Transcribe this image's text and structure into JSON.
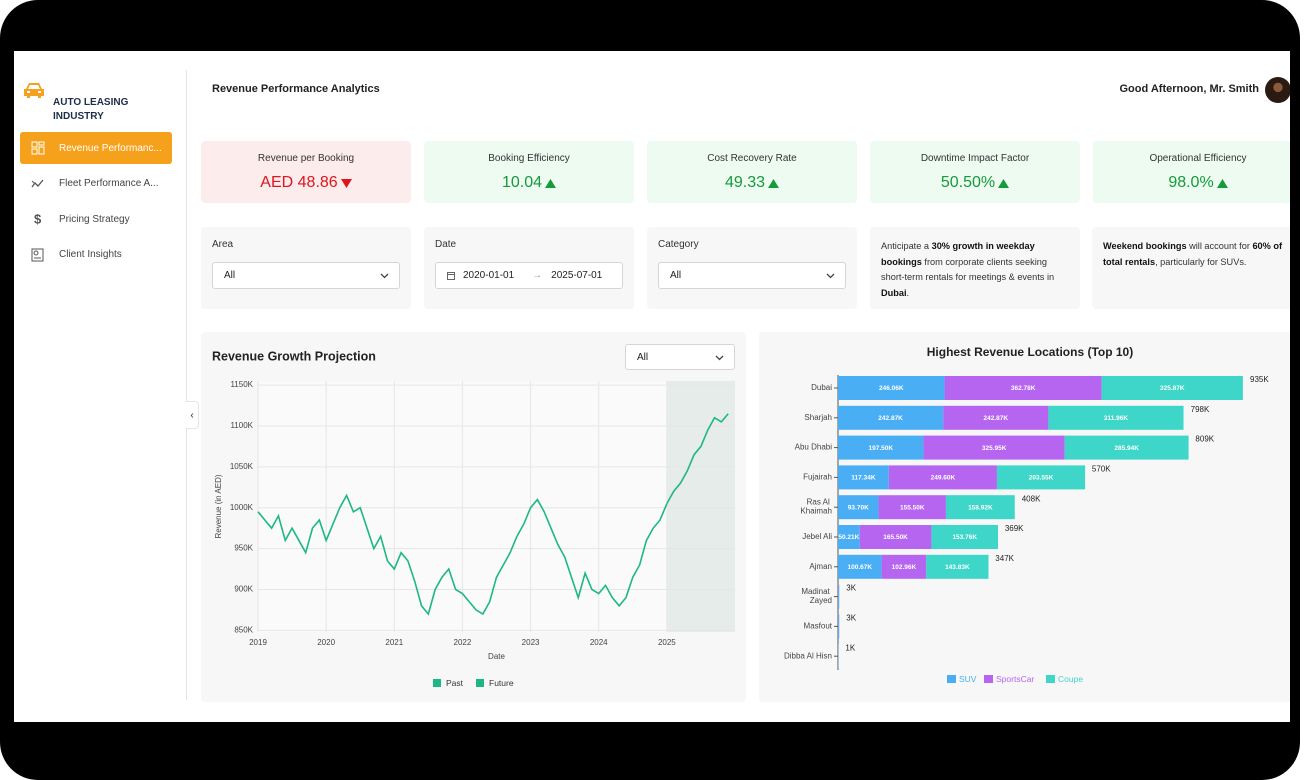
{
  "brand": {
    "name": "AUTO LEASING INDUSTRY"
  },
  "nav": {
    "items": [
      {
        "label": "Revenue Performanc...",
        "active": true
      },
      {
        "label": "Fleet Performance A...",
        "active": false
      },
      {
        "label": "Pricing Strategy",
        "active": false
      },
      {
        "label": "Client Insights",
        "active": false
      }
    ]
  },
  "header": {
    "title": "Revenue Performance Analytics",
    "greeting": "Good Afternoon, Mr. Smith"
  },
  "kpis": [
    {
      "label": "Revenue per Booking",
      "value": "AED 48.86",
      "trend": "down"
    },
    {
      "label": "Booking Efficiency",
      "value": "10.04",
      "trend": "up"
    },
    {
      "label": "Cost Recovery Rate",
      "value": "49.33",
      "trend": "up"
    },
    {
      "label": "Downtime Impact Factor",
      "value": "50.50%",
      "trend": "up"
    },
    {
      "label": "Operational Efficiency",
      "value": "98.0%",
      "trend": "up"
    }
  ],
  "filters": {
    "area": {
      "label": "Area",
      "value": "All"
    },
    "date": {
      "label": "Date",
      "start": "2020-01-01",
      "end": "2025-07-01"
    },
    "category": {
      "label": "Category",
      "value": "All"
    }
  },
  "insights": [
    [
      {
        "text": "Anticipate a ",
        "bold": false
      },
      {
        "text": "30% growth in weekday bookings",
        "bold": true
      },
      {
        "text": " from corporate clients seeking short-term rentals for meetings & events in ",
        "bold": false
      },
      {
        "text": "Dubai",
        "bold": true
      },
      {
        "text": ".",
        "bold": false
      }
    ],
    [
      {
        "text": "Weekend bookings",
        "bold": true
      },
      {
        "text": " will account for ",
        "bold": false
      },
      {
        "text": "60% of total rentals",
        "bold": true
      },
      {
        "text": ", particularly for SUVs.",
        "bold": false
      }
    ]
  ],
  "chart_data": [
    {
      "type": "line",
      "title": "Revenue Growth Projection",
      "dropdown": "All",
      "xlabel": "Date",
      "ylabel": "Revenue (in AED)",
      "xlim": [
        2019,
        2026
      ],
      "xticks": [
        2019,
        2020,
        2021,
        2022,
        2023,
        2024,
        2025
      ],
      "ylim": [
        848000,
        1155000
      ],
      "yticks": [
        {
          "value": 850000,
          "label": "850K"
        },
        {
          "value": 900000,
          "label": "900K"
        },
        {
          "value": 950000,
          "label": "950K"
        },
        {
          "value": 1000000,
          "label": "1000K"
        },
        {
          "value": 1050000,
          "label": "1050K"
        },
        {
          "value": 1100000,
          "label": "1100K"
        },
        {
          "value": 1150000,
          "label": "1150K"
        }
      ],
      "grid": true,
      "series": [
        {
          "name": "Past",
          "color": "#1db784",
          "x": [
            2019,
            2019.1,
            2019.2,
            2019.3,
            2019.4,
            2019.5,
            2019.6,
            2019.7,
            2019.8,
            2019.9,
            2020,
            2020.1,
            2020.2,
            2020.3,
            2020.4,
            2020.5,
            2020.6,
            2020.7,
            2020.8,
            2020.9,
            2021,
            2021.1,
            2021.2,
            2021.3,
            2021.4,
            2021.5,
            2021.6,
            2021.7,
            2021.8,
            2021.9,
            2022,
            2022.1,
            2022.2,
            2022.3,
            2022.4,
            2022.5,
            2022.6,
            2022.7,
            2022.8,
            2022.9,
            2023,
            2023.1,
            2023.2,
            2023.3,
            2023.4,
            2023.5,
            2023.6,
            2023.7,
            2023.8,
            2023.9,
            2024,
            2024.1,
            2024.2,
            2024.3,
            2024.4,
            2024.5,
            2024.6,
            2024.7,
            2024.8,
            2024.9,
            2025
          ],
          "values": [
            995000,
            985000,
            975000,
            990000,
            960000,
            975000,
            960000,
            945000,
            975000,
            985000,
            960000,
            980000,
            1000000,
            1015000,
            995000,
            1000000,
            975000,
            950000,
            965000,
            935000,
            925000,
            945000,
            935000,
            910000,
            880000,
            870000,
            900000,
            915000,
            925000,
            900000,
            895000,
            885000,
            875000,
            870000,
            885000,
            915000,
            930000,
            945000,
            965000,
            980000,
            1000000,
            1010000,
            995000,
            975000,
            955000,
            940000,
            915000,
            890000,
            920000,
            900000,
            895000,
            905000,
            890000,
            880000,
            890000,
            915000,
            930000,
            960000,
            975000,
            985000,
            1005000
          ]
        },
        {
          "name": "Future",
          "color": "#1db784",
          "x": [
            2025,
            2025.1,
            2025.2,
            2025.3,
            2025.4,
            2025.5,
            2025.6,
            2025.7,
            2025.8,
            2025.9
          ],
          "values": [
            1005000,
            1020000,
            1030000,
            1045000,
            1065000,
            1075000,
            1095000,
            1110000,
            1105000,
            1115000
          ]
        }
      ]
    },
    {
      "type": "hbar-stacked",
      "title": "Highest Revenue Locations (Top 10)",
      "categories": [
        "Dubai",
        "Sharjah",
        "Abu Dhabi",
        "Fujairah",
        "Ras Al Khaimah",
        "Jebel Ali",
        "Ajman",
        "Madinat Zayed",
        "Masfout",
        "Dibba Al Hisn"
      ],
      "series": [
        {
          "name": "SUV",
          "color": "#4aaef5",
          "values": [
            246060,
            242870,
            197500,
            117340,
            93700,
            50210,
            100670,
            1000,
            1000,
            400
          ],
          "value_labels": [
            "246.06K",
            "242.87K",
            "197.50K",
            "117.34K",
            "93.70K",
            "50.21K",
            "100.67K",
            null,
            null,
            null
          ]
        },
        {
          "name": "SportsCar",
          "color": "#b565f0",
          "values": [
            362780,
            242870,
            325950,
            249600,
            155500,
            165500,
            102960,
            1000,
            1000,
            300
          ],
          "value_labels": [
            "362.78K",
            "242.87K",
            "325.95K",
            "249.60K",
            "155.50K",
            "165.50K",
            "102.96K",
            null,
            null,
            null
          ]
        },
        {
          "name": "Coupe",
          "color": "#3ed6c8",
          "values": [
            325870,
            311960,
            285940,
            203550,
            158920,
            153760,
            143830,
            1000,
            1000,
            300
          ],
          "value_labels": [
            "325.87K",
            "311.96K",
            "285.94K",
            "203.55K",
            "158.92K",
            "153.76K",
            "143.83K",
            null,
            null,
            null
          ]
        }
      ],
      "totals": [
        935000,
        798000,
        809000,
        570000,
        408000,
        369000,
        347000,
        3000,
        3000,
        1000
      ],
      "total_labels": [
        "935K",
        "798K",
        "809K",
        "570K",
        "408K",
        "369K",
        "347K",
        "3K",
        "3K",
        "1K"
      ]
    }
  ]
}
